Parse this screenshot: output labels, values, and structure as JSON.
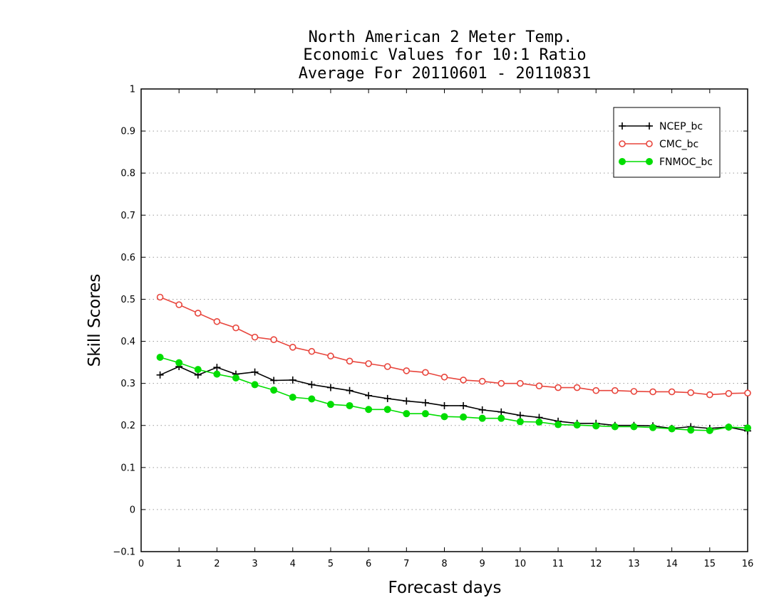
{
  "chart_data": {
    "type": "line",
    "title_lines": [
      "North American 2 Meter Temp.",
      "Economic Values for 10:1 Ratio",
      "Average For 20110601 - 20110831"
    ],
    "xlabel": "Forecast days",
    "ylabel": "Skill Scores",
    "xlim": [
      0,
      16
    ],
    "ylim": [
      -0.1,
      1
    ],
    "x_ticks": [
      0,
      1,
      2,
      3,
      4,
      5,
      6,
      7,
      8,
      9,
      10,
      11,
      12,
      13,
      14,
      15,
      16
    ],
    "x_tick_labels": [
      "0",
      "1",
      "2",
      "3",
      "4",
      "5",
      "6",
      "7",
      "8",
      "9",
      "10",
      "11",
      "12",
      "13",
      "14",
      "15",
      "16"
    ],
    "y_ticks": [
      -0.1,
      0,
      0.1,
      0.2,
      0.3,
      0.4,
      0.5,
      0.6,
      0.7,
      0.8,
      0.9,
      1
    ],
    "y_tick_labels": [
      "−0.1",
      "0",
      "0.1",
      "0.2",
      "0.3",
      "0.4",
      "0.5",
      "0.6",
      "0.7",
      "0.8",
      "0.9",
      "1"
    ],
    "grid": "horizontal-dotted",
    "legend_position": "top-right",
    "x": [
      0.5,
      1,
      1.5,
      2,
      2.5,
      3,
      3.5,
      4,
      4.5,
      5,
      5.5,
      6,
      6.5,
      7,
      7.5,
      8,
      8.5,
      9,
      9.5,
      10,
      10.5,
      11,
      11.5,
      12,
      12.5,
      13,
      13.5,
      14,
      14.5,
      15,
      15.5,
      16
    ],
    "series": [
      {
        "name": "NCEP_bc",
        "color": "#000000",
        "marker": "plus",
        "values": [
          0.32,
          0.34,
          0.32,
          0.338,
          0.322,
          0.327,
          0.307,
          0.308,
          0.297,
          0.29,
          0.283,
          0.271,
          0.264,
          0.258,
          0.254,
          0.247,
          0.247,
          0.237,
          0.232,
          0.224,
          0.219,
          0.21,
          0.205,
          0.205,
          0.2,
          0.2,
          0.199,
          0.193,
          0.197,
          0.193,
          0.196,
          0.187
        ]
      },
      {
        "name": "CMC_bc",
        "color": "#e8453c",
        "marker": "open-circle",
        "values": [
          0.505,
          0.487,
          0.467,
          0.447,
          0.432,
          0.41,
          0.404,
          0.386,
          0.376,
          0.365,
          0.353,
          0.347,
          0.34,
          0.33,
          0.326,
          0.315,
          0.308,
          0.305,
          0.3,
          0.3,
          0.294,
          0.29,
          0.29,
          0.283,
          0.283,
          0.281,
          0.28,
          0.28,
          0.278,
          0.273,
          0.276,
          0.277
        ]
      },
      {
        "name": "FNMOC_bc",
        "color": "#00dd00",
        "marker": "filled-circle",
        "values": [
          0.362,
          0.349,
          0.333,
          0.322,
          0.313,
          0.297,
          0.284,
          0.267,
          0.263,
          0.25,
          0.247,
          0.238,
          0.238,
          0.228,
          0.228,
          0.221,
          0.22,
          0.217,
          0.217,
          0.209,
          0.208,
          0.202,
          0.201,
          0.199,
          0.197,
          0.197,
          0.195,
          0.192,
          0.189,
          0.188,
          0.196,
          0.194
        ]
      }
    ]
  }
}
